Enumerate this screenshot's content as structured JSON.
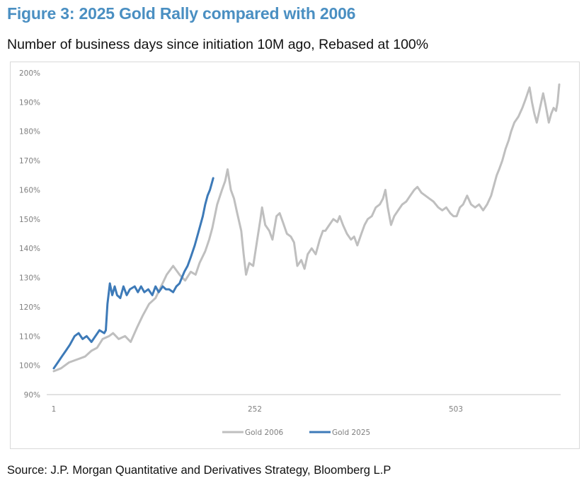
{
  "figure": {
    "title": "Figure 3: 2025 Gold Rally compared with 2006",
    "subtitle": "Number of business days since initiation 10M ago, Rebased at 100%",
    "source": "Source: J.P. Morgan Quantitative and Derivatives Strategy, Bloomberg L.P"
  },
  "chart_data": {
    "type": "line",
    "title": "2025 Gold Rally compared with 2006",
    "xlabel": "Number of business days since initiation",
    "ylabel": "Rebased at 100%",
    "xlim": [
      1,
      640
    ],
    "ylim": [
      90,
      200
    ],
    "x_ticks": [
      1,
      252,
      503
    ],
    "x_tick_labels": [
      "1",
      "252",
      "503"
    ],
    "y_ticks": [
      90,
      100,
      110,
      120,
      130,
      140,
      150,
      160,
      170,
      180,
      190,
      200
    ],
    "y_tick_labels": [
      "90%",
      "100%",
      "110%",
      "120%",
      "130%",
      "140%",
      "150%",
      "160%",
      "170%",
      "180%",
      "190%",
      "200%"
    ],
    "grid": false,
    "legend": "bottom-center",
    "series": [
      {
        "name": "Gold 2006",
        "color": "#bfbfbf",
        "points": [
          [
            1,
            98
          ],
          [
            10,
            99
          ],
          [
            20,
            101
          ],
          [
            30,
            102
          ],
          [
            40,
            103
          ],
          [
            48,
            105
          ],
          [
            55,
            106
          ],
          [
            62,
            109
          ],
          [
            70,
            110
          ],
          [
            75,
            111
          ],
          [
            82,
            109
          ],
          [
            90,
            110
          ],
          [
            97,
            108
          ],
          [
            105,
            113
          ],
          [
            112,
            117
          ],
          [
            120,
            121
          ],
          [
            128,
            123
          ],
          [
            135,
            127
          ],
          [
            142,
            131
          ],
          [
            150,
            134
          ],
          [
            158,
            131
          ],
          [
            165,
            129
          ],
          [
            172,
            132
          ],
          [
            178,
            131
          ],
          [
            183,
            135
          ],
          [
            190,
            139
          ],
          [
            195,
            143
          ],
          [
            199,
            147
          ],
          [
            205,
            155
          ],
          [
            211,
            160
          ],
          [
            215,
            163
          ],
          [
            218,
            167
          ],
          [
            222,
            160
          ],
          [
            226,
            157
          ],
          [
            230,
            152
          ],
          [
            235,
            146
          ],
          [
            238,
            138
          ],
          [
            241,
            131
          ],
          [
            245,
            135
          ],
          [
            250,
            134
          ],
          [
            255,
            143
          ],
          [
            259,
            150
          ],
          [
            261,
            154
          ],
          [
            265,
            148
          ],
          [
            270,
            146
          ],
          [
            274,
            143
          ],
          [
            279,
            151
          ],
          [
            283,
            152
          ],
          [
            287,
            149
          ],
          [
            292,
            145
          ],
          [
            297,
            144
          ],
          [
            301,
            142
          ],
          [
            305,
            134
          ],
          [
            310,
            136
          ],
          [
            314,
            133
          ],
          [
            318,
            138
          ],
          [
            323,
            140
          ],
          [
            328,
            138
          ],
          [
            333,
            143
          ],
          [
            337,
            146
          ],
          [
            340,
            146
          ],
          [
            345,
            148
          ],
          [
            350,
            150
          ],
          [
            355,
            149
          ],
          [
            358,
            151
          ],
          [
            362,
            148
          ],
          [
            367,
            145
          ],
          [
            372,
            143
          ],
          [
            376,
            144
          ],
          [
            380,
            141
          ],
          [
            385,
            145
          ],
          [
            389,
            148
          ],
          [
            393,
            150
          ],
          [
            398,
            151
          ],
          [
            403,
            154
          ],
          [
            408,
            155
          ],
          [
            412,
            157
          ],
          [
            415,
            160
          ],
          [
            418,
            154
          ],
          [
            422,
            148
          ],
          [
            426,
            151
          ],
          [
            431,
            153
          ],
          [
            436,
            155
          ],
          [
            441,
            156
          ],
          [
            446,
            158
          ],
          [
            451,
            160
          ],
          [
            455,
            161
          ],
          [
            460,
            159
          ],
          [
            465,
            158
          ],
          [
            470,
            157
          ],
          [
            475,
            156
          ],
          [
            481,
            154
          ],
          [
            486,
            153
          ],
          [
            491,
            154
          ],
          [
            496,
            152
          ],
          [
            500,
            151
          ],
          [
            504,
            151
          ],
          [
            508,
            154
          ],
          [
            512,
            155
          ],
          [
            517,
            158
          ],
          [
            522,
            155
          ],
          [
            527,
            154
          ],
          [
            532,
            155
          ],
          [
            537,
            153
          ],
          [
            542,
            155
          ],
          [
            547,
            158
          ],
          [
            551,
            162
          ],
          [
            554,
            165
          ],
          [
            557,
            167
          ],
          [
            561,
            170
          ],
          [
            565,
            174
          ],
          [
            569,
            177
          ],
          [
            572,
            180
          ],
          [
            576,
            183
          ],
          [
            581,
            185
          ],
          [
            586,
            188
          ],
          [
            590,
            191
          ],
          [
            595,
            195
          ],
          [
            598,
            190
          ],
          [
            601,
            186
          ],
          [
            604,
            183
          ],
          [
            608,
            188
          ],
          [
            612,
            193
          ],
          [
            615,
            189
          ],
          [
            619,
            183
          ],
          [
            622,
            186
          ],
          [
            625,
            188
          ],
          [
            628,
            187
          ],
          [
            630,
            190
          ],
          [
            632,
            196
          ]
        ]
      },
      {
        "name": "Gold 2025",
        "color": "#3d7ab8",
        "points": [
          [
            1,
            99
          ],
          [
            6,
            101
          ],
          [
            11,
            103
          ],
          [
            16,
            105
          ],
          [
            21,
            107
          ],
          [
            27,
            110
          ],
          [
            32,
            111
          ],
          [
            37,
            109
          ],
          [
            42,
            110
          ],
          [
            48,
            108
          ],
          [
            53,
            110
          ],
          [
            58,
            112
          ],
          [
            64,
            111
          ],
          [
            66,
            112
          ],
          [
            68,
            121
          ],
          [
            71,
            128
          ],
          [
            74,
            124
          ],
          [
            77,
            127
          ],
          [
            80,
            124
          ],
          [
            84,
            123
          ],
          [
            88,
            127
          ],
          [
            92,
            124
          ],
          [
            96,
            126
          ],
          [
            102,
            127
          ],
          [
            106,
            125
          ],
          [
            110,
            127
          ],
          [
            114,
            125
          ],
          [
            119,
            126
          ],
          [
            124,
            124
          ],
          [
            128,
            127
          ],
          [
            132,
            125
          ],
          [
            137,
            127
          ],
          [
            141,
            126
          ],
          [
            145,
            126
          ],
          [
            150,
            125
          ],
          [
            154,
            127
          ],
          [
            158,
            128
          ],
          [
            161,
            130
          ],
          [
            164,
            132
          ],
          [
            168,
            134
          ],
          [
            172,
            137
          ],
          [
            177,
            141
          ],
          [
            181,
            145
          ],
          [
            184,
            148
          ],
          [
            187,
            151
          ],
          [
            190,
            155
          ],
          [
            193,
            158
          ],
          [
            196,
            160
          ],
          [
            198,
            162
          ],
          [
            200,
            164
          ]
        ]
      }
    ]
  }
}
